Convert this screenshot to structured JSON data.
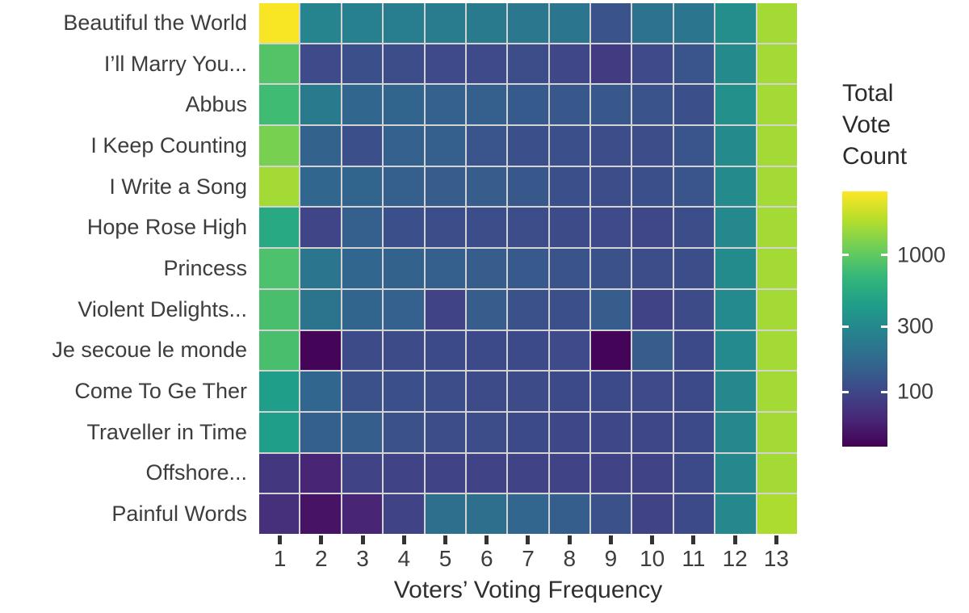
{
  "chart_data": {
    "type": "heatmap",
    "title": "",
    "xlabel": "Voters’ Voting Frequency",
    "ylabel": "",
    "legend_title": "Total Vote Count",
    "legend_position": "right",
    "legend_ticks": [
      1000,
      300,
      100
    ],
    "colormap": "viridis",
    "scale": "log10",
    "scale_min": 40,
    "scale_max": 2900,
    "columns": [
      "1",
      "2",
      "3",
      "4",
      "5",
      "6",
      "7",
      "8",
      "9",
      "10",
      "11",
      "12",
      "13"
    ],
    "rows": [
      "Beautiful the World",
      "I’ll Marry You...",
      "Abbus",
      "I Keep Counting",
      "I Write a Song",
      "Hope Rose High",
      "Princess",
      "Violent Delights...",
      "Je secoue le monde",
      "Come To Ge Ther",
      "Traveller in Time",
      "Offshore...",
      "Painful Words"
    ],
    "values": [
      [
        2800,
        280,
        260,
        250,
        240,
        230,
        220,
        210,
        120,
        200,
        210,
        330,
        1600
      ],
      [
        900,
        105,
        115,
        110,
        105,
        105,
        110,
        100,
        85,
        105,
        125,
        310,
        1600
      ],
      [
        760,
        230,
        165,
        160,
        150,
        145,
        135,
        130,
        130,
        120,
        115,
        340,
        1600
      ],
      [
        1200,
        155,
        115,
        150,
        145,
        125,
        115,
        115,
        110,
        110,
        125,
        310,
        1600
      ],
      [
        1600,
        165,
        160,
        145,
        140,
        140,
        130,
        115,
        110,
        115,
        125,
        310,
        1600
      ],
      [
        520,
        98,
        145,
        115,
        112,
        112,
        110,
        108,
        105,
        100,
        112,
        295,
        1600
      ],
      [
        850,
        215,
        165,
        155,
        145,
        140,
        132,
        122,
        118,
        112,
        112,
        315,
        1600
      ],
      [
        820,
        205,
        160,
        150,
        96,
        140,
        118,
        115,
        140,
        96,
        108,
        305,
        1600
      ],
      [
        820,
        42,
        108,
        108,
        106,
        106,
        106,
        105,
        42,
        140,
        106,
        305,
        1600
      ],
      [
        430,
        165,
        118,
        115,
        112,
        108,
        108,
        106,
        106,
        105,
        106,
        295,
        1600
      ],
      [
        430,
        148,
        142,
        118,
        112,
        110,
        106,
        102,
        102,
        102,
        106,
        295,
        1600
      ],
      [
        80,
        62,
        96,
        96,
        96,
        96,
        96,
        96,
        96,
        96,
        106,
        295,
        1600
      ],
      [
        72,
        50,
        62,
        96,
        190,
        188,
        162,
        142,
        118,
        96,
        106,
        295,
        1700
      ]
    ]
  }
}
